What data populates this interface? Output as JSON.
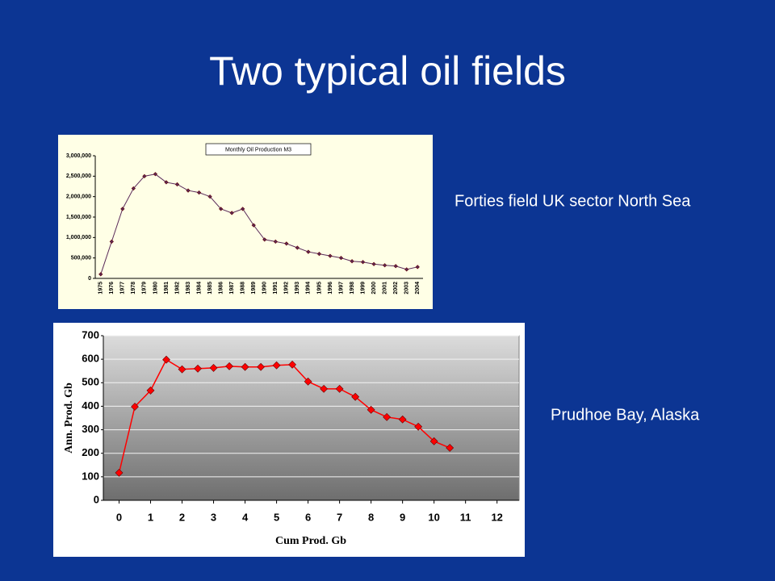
{
  "title": "Two typical oil fields",
  "chart_data": [
    {
      "type": "line",
      "annotation": "Forties field UK sector North Sea",
      "categories": [
        "1975",
        "1976",
        "1977",
        "1978",
        "1979",
        "1980",
        "1981",
        "1982",
        "1983",
        "1984",
        "1985",
        "1986",
        "1987",
        "1988",
        "1989",
        "1990",
        "1991",
        "1992",
        "1993",
        "1994",
        "1995",
        "1996",
        "1997",
        "1998",
        "1999",
        "2000",
        "2001",
        "2002",
        "2003",
        "2004"
      ],
      "series": [
        {
          "name": "Monthly Oil Production M3",
          "color": "#5a2a5a",
          "values": [
            100000,
            900000,
            1700000,
            2200000,
            2500000,
            2550000,
            2350000,
            2300000,
            2150000,
            2100000,
            2000000,
            1700000,
            1600000,
            1700000,
            1300000,
            950000,
            900000,
            850000,
            750000,
            650000,
            600000,
            550000,
            500000,
            420000,
            400000,
            350000,
            320000,
            300000,
            220000,
            280000
          ]
        }
      ],
      "ylim": [
        0,
        3000000
      ],
      "yticks": [
        0,
        {
          "value": 500000,
          "label": "500,000"
        },
        {
          "value": 1000000,
          "label": "1,000,000"
        },
        {
          "value": 1500000,
          "label": "1,500,000"
        },
        {
          "value": 2000000,
          "label": "2,000,000"
        },
        {
          "value": 2500000,
          "label": "2,500,000"
        },
        {
          "value": 3000000,
          "label": "3,000,000"
        }
      ],
      "grid": false
    },
    {
      "type": "line",
      "annotation": "Prudhoe Bay, Alaska",
      "x_label": "Cum Prod. Gb",
      "y_label": "Ann. Prod. Gb",
      "x": [
        0,
        0.5,
        1,
        1.5,
        2,
        2.5,
        3,
        3.5,
        4,
        4.5,
        5,
        5.5,
        6,
        6.5,
        7,
        7.5,
        8,
        8.5,
        9,
        9.5,
        10,
        10.5
      ],
      "values": [
        117,
        398,
        467,
        598,
        557,
        560,
        563,
        570,
        567,
        567,
        574,
        577,
        505,
        474,
        474,
        440,
        385,
        354,
        344,
        313,
        251,
        223
      ],
      "color": "#ff0000",
      "xlim": [
        -0.5,
        12.7
      ],
      "xticks": [
        0,
        1,
        2,
        3,
        4,
        5,
        6,
        7,
        8,
        9,
        10,
        11,
        12
      ],
      "ylim": [
        0,
        700
      ],
      "yticks": [
        0,
        100,
        200,
        300,
        400,
        500,
        600,
        700
      ],
      "grid": true
    }
  ]
}
